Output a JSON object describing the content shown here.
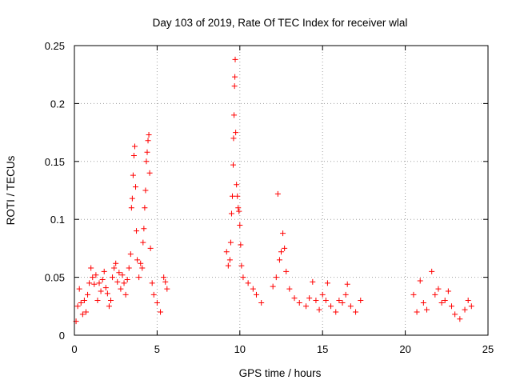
{
  "chart_data": {
    "type": "scatter",
    "title": "Day 103 of 2019, Rate Of TEC Index for receiver wlal",
    "xlabel": "GPS time / hours",
    "ylabel": "ROTI / TECUs",
    "xlim": [
      0,
      25
    ],
    "ylim": [
      0,
      0.25
    ],
    "xticks": [
      "0",
      "5",
      "10",
      "15",
      "20",
      "25"
    ],
    "yticks": [
      "0",
      "0.05",
      "0.1",
      "0.15",
      "0.2",
      "0.25"
    ],
    "grid": true,
    "marker": "+",
    "color": "#ff0000",
    "series": [
      {
        "name": "ROTI",
        "points": [
          [
            0.1,
            0.012
          ],
          [
            0.2,
            0.025
          ],
          [
            0.3,
            0.04
          ],
          [
            0.4,
            0.028
          ],
          [
            0.5,
            0.018
          ],
          [
            0.6,
            0.03
          ],
          [
            0.7,
            0.02
          ],
          [
            0.8,
            0.035
          ],
          [
            0.9,
            0.045
          ],
          [
            1.0,
            0.058
          ],
          [
            1.1,
            0.05
          ],
          [
            1.2,
            0.044
          ],
          [
            1.3,
            0.052
          ],
          [
            1.4,
            0.03
          ],
          [
            1.5,
            0.045
          ],
          [
            1.6,
            0.038
          ],
          [
            1.7,
            0.048
          ],
          [
            1.8,
            0.055
          ],
          [
            1.9,
            0.041
          ],
          [
            2.0,
            0.036
          ],
          [
            2.1,
            0.025
          ],
          [
            2.2,
            0.03
          ],
          [
            2.3,
            0.05
          ],
          [
            2.4,
            0.058
          ],
          [
            2.5,
            0.062
          ],
          [
            2.6,
            0.046
          ],
          [
            2.7,
            0.054
          ],
          [
            2.8,
            0.04
          ],
          [
            2.9,
            0.052
          ],
          [
            3.0,
            0.045
          ],
          [
            3.1,
            0.035
          ],
          [
            3.2,
            0.048
          ],
          [
            3.3,
            0.058
          ],
          [
            3.4,
            0.07
          ],
          [
            3.45,
            0.11
          ],
          [
            3.5,
            0.118
          ],
          [
            3.55,
            0.138
          ],
          [
            3.6,
            0.155
          ],
          [
            3.65,
            0.163
          ],
          [
            3.7,
            0.128
          ],
          [
            3.75,
            0.09
          ],
          [
            3.8,
            0.065
          ],
          [
            3.9,
            0.05
          ],
          [
            4.0,
            0.062
          ],
          [
            4.1,
            0.058
          ],
          [
            4.15,
            0.08
          ],
          [
            4.2,
            0.092
          ],
          [
            4.25,
            0.11
          ],
          [
            4.3,
            0.125
          ],
          [
            4.35,
            0.15
          ],
          [
            4.4,
            0.158
          ],
          [
            4.45,
            0.168
          ],
          [
            4.5,
            0.173
          ],
          [
            4.55,
            0.14
          ],
          [
            4.6,
            0.075
          ],
          [
            4.7,
            0.045
          ],
          [
            4.8,
            0.035
          ],
          [
            5.0,
            0.028
          ],
          [
            5.2,
            0.02
          ],
          [
            5.4,
            0.05
          ],
          [
            5.5,
            0.046
          ],
          [
            5.6,
            0.04
          ],
          [
            9.2,
            0.072
          ],
          [
            9.3,
            0.06
          ],
          [
            9.4,
            0.065
          ],
          [
            9.45,
            0.08
          ],
          [
            9.5,
            0.105
          ],
          [
            9.55,
            0.12
          ],
          [
            9.6,
            0.147
          ],
          [
            9.62,
            0.17
          ],
          [
            9.65,
            0.19
          ],
          [
            9.68,
            0.215
          ],
          [
            9.7,
            0.223
          ],
          [
            9.72,
            0.238
          ],
          [
            9.75,
            0.175
          ],
          [
            9.8,
            0.13
          ],
          [
            9.85,
            0.12
          ],
          [
            9.9,
            0.11
          ],
          [
            9.95,
            0.107
          ],
          [
            10.0,
            0.095
          ],
          [
            10.05,
            0.078
          ],
          [
            10.1,
            0.06
          ],
          [
            10.2,
            0.05
          ],
          [
            10.5,
            0.045
          ],
          [
            10.8,
            0.04
          ],
          [
            11.0,
            0.035
          ],
          [
            11.3,
            0.028
          ],
          [
            12.0,
            0.042
          ],
          [
            12.2,
            0.05
          ],
          [
            12.3,
            0.122
          ],
          [
            12.4,
            0.065
          ],
          [
            12.5,
            0.072
          ],
          [
            12.6,
            0.088
          ],
          [
            12.7,
            0.075
          ],
          [
            12.8,
            0.055
          ],
          [
            13.0,
            0.04
          ],
          [
            13.3,
            0.032
          ],
          [
            13.6,
            0.028
          ],
          [
            14.0,
            0.025
          ],
          [
            14.2,
            0.032
          ],
          [
            14.4,
            0.046
          ],
          [
            14.6,
            0.03
          ],
          [
            14.8,
            0.022
          ],
          [
            15.0,
            0.035
          ],
          [
            15.2,
            0.03
          ],
          [
            15.3,
            0.045
          ],
          [
            15.5,
            0.025
          ],
          [
            15.8,
            0.02
          ],
          [
            16.0,
            0.03
          ],
          [
            16.2,
            0.028
          ],
          [
            16.4,
            0.035
          ],
          [
            16.5,
            0.044
          ],
          [
            16.7,
            0.025
          ],
          [
            17.0,
            0.02
          ],
          [
            17.3,
            0.03
          ],
          [
            20.5,
            0.035
          ],
          [
            20.7,
            0.02
          ],
          [
            20.9,
            0.047
          ],
          [
            21.1,
            0.028
          ],
          [
            21.3,
            0.022
          ],
          [
            21.6,
            0.055
          ],
          [
            21.8,
            0.035
          ],
          [
            22.0,
            0.04
          ],
          [
            22.2,
            0.028
          ],
          [
            22.4,
            0.03
          ],
          [
            22.6,
            0.038
          ],
          [
            22.8,
            0.025
          ],
          [
            23.0,
            0.018
          ],
          [
            23.3,
            0.014
          ],
          [
            23.6,
            0.022
          ],
          [
            23.8,
            0.03
          ],
          [
            24.0,
            0.025
          ]
        ]
      }
    ]
  }
}
